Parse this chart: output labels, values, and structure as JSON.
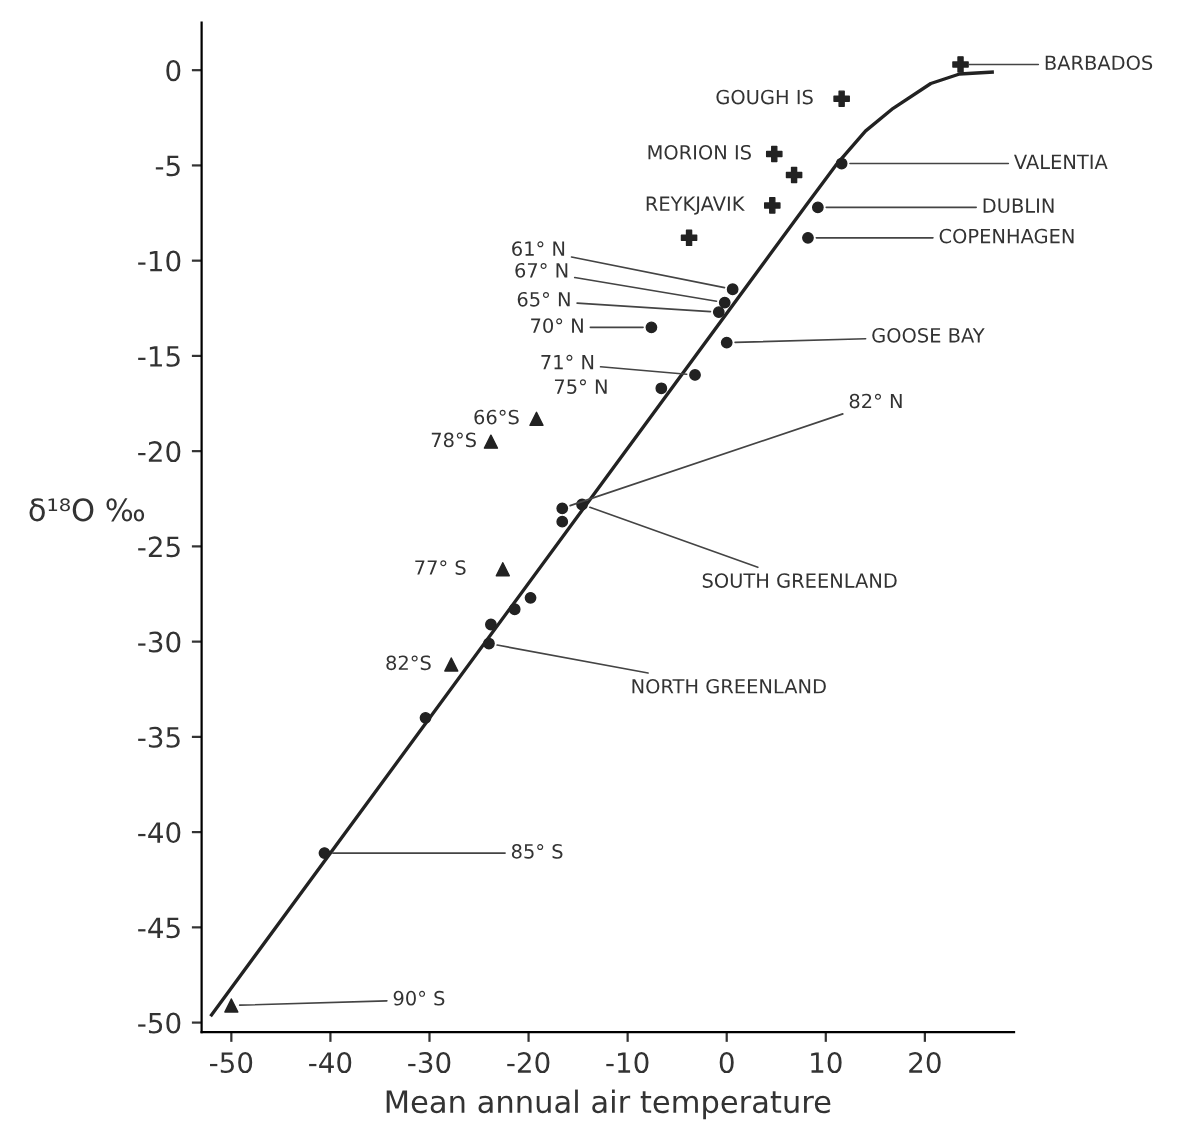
{
  "chart_data": {
    "type": "scatter",
    "xlabel": "Mean annual air temperature",
    "ylabel": "δ¹⁸O ‰",
    "xlim": [
      -53,
      29
    ],
    "ylim": [
      -50.5,
      2.5
    ],
    "xticks": [
      {
        "value": -50,
        "label": "-50"
      },
      {
        "value": -40,
        "label": "-40"
      },
      {
        "value": -30,
        "label": "-30"
      },
      {
        "value": -20,
        "label": "-20"
      },
      {
        "value": -10,
        "label": "-10"
      },
      0,
      10,
      20
    ],
    "yticks": [
      0,
      {
        "value": -5,
        "label": "-5"
      },
      {
        "value": -10,
        "label": "-10"
      },
      {
        "value": -15,
        "label": "-15"
      },
      {
        "value": -20,
        "label": "-20"
      },
      {
        "value": -25,
        "label": "-25"
      },
      {
        "value": -30,
        "label": "-30"
      },
      {
        "value": -35,
        "label": "-35"
      },
      {
        "value": -40,
        "label": "-40"
      },
      {
        "value": -45,
        "label": "-45"
      },
      {
        "value": -50,
        "label": "-50"
      }
    ],
    "grid": false,
    "legend": false,
    "series": [
      {
        "type": "line",
        "color": "#222222",
        "marker": "none",
        "line_style": "solid",
        "x": [
          -52,
          8,
          11,
          14,
          16.8,
          20.6,
          23.5,
          26.8
        ],
        "values": [
          -49.6,
          -7.1,
          -5.0,
          -3.2,
          -2.0,
          -0.7,
          -0.2,
          -0.1
        ]
      },
      {
        "color": "#222222",
        "marker": "cross",
        "x": [
          23.6,
          11.6,
          4.8,
          6.8,
          4.6,
          -3.8
        ],
        "values": [
          0.3,
          -1.5,
          -4.4,
          -5.5,
          -7.1,
          -8.8
        ]
      },
      {
        "color": "#222222",
        "marker": "circle",
        "x": [
          11.6,
          9.2,
          8.2,
          0.6,
          -0.2,
          -0.8,
          -7.6,
          0,
          -3.2,
          -6.6,
          -16.6,
          -14.6,
          -16.6,
          -19.8,
          -21.4,
          -23.8,
          -24.0,
          -30.4,
          -40.6
        ],
        "values": [
          -4.9,
          -7.2,
          -8.8,
          -11.5,
          -12.2,
          -12.7,
          -13.5,
          -14.3,
          -16.0,
          -16.7,
          -23.0,
          -22.8,
          -23.7,
          -27.7,
          -28.3,
          -29.1,
          -30.1,
          -34.0,
          -41.1
        ]
      },
      {
        "color": "#222222",
        "marker": "triangle",
        "x": [
          -19.2,
          -23.8,
          -22.6,
          -27.8,
          -50
        ],
        "values": [
          -18.3,
          -19.5,
          -26.2,
          -31.2,
          -49.1
        ]
      }
    ],
    "annotations": [
      {
        "text": "BARBADOS",
        "x": 23.6,
        "y": 0.3
      },
      {
        "text": "GOUGH IS",
        "x": 11.6,
        "y": -1.5
      },
      {
        "text": "MORION IS",
        "x": 4.8,
        "y": -4.4
      },
      {
        "text": "REYKJAVIK",
        "x": 4.6,
        "y": -7.1
      },
      {
        "text": "VALENTIA",
        "x": 11.6,
        "y": -4.9
      },
      {
        "text": "DUBLIN",
        "x": 9.2,
        "y": -7.2
      },
      {
        "text": "COPENHAGEN",
        "x": 8.2,
        "y": -8.8
      },
      {
        "text": "61° N",
        "x": 0.6,
        "y": -11.5
      },
      {
        "text": "67° N",
        "x": -0.2,
        "y": -12.2
      },
      {
        "text": "65° N",
        "x": -0.8,
        "y": -12.7
      },
      {
        "text": "70° N",
        "x": -7.6,
        "y": -13.5
      },
      {
        "text": "GOOSE BAY",
        "x": 0,
        "y": -14.3
      },
      {
        "text": "71° N",
        "x": -3.2,
        "y": -16.0
      },
      {
        "text": "75° N",
        "x": -6.6,
        "y": -16.7
      },
      {
        "text": "66°S",
        "x": -19.2,
        "y": -18.3
      },
      {
        "text": "78°S",
        "x": -23.8,
        "y": -19.5
      },
      {
        "text": "82° N",
        "x": -16.6,
        "y": -23.0
      },
      {
        "text": "SOUTH GREENLAND",
        "x": -14.6,
        "y": -22.8
      },
      {
        "text": "77° S",
        "x": -22.6,
        "y": -26.2
      },
      {
        "text": "82°S",
        "x": -27.8,
        "y": -31.2
      },
      {
        "text": "NORTH GREENLAND",
        "x": -24.0,
        "y": -30.1
      },
      {
        "text": "85° S",
        "x": -40.6,
        "y": -41.1
      },
      {
        "text": "90° S",
        "x": -50,
        "y": -49.1
      }
    ]
  }
}
